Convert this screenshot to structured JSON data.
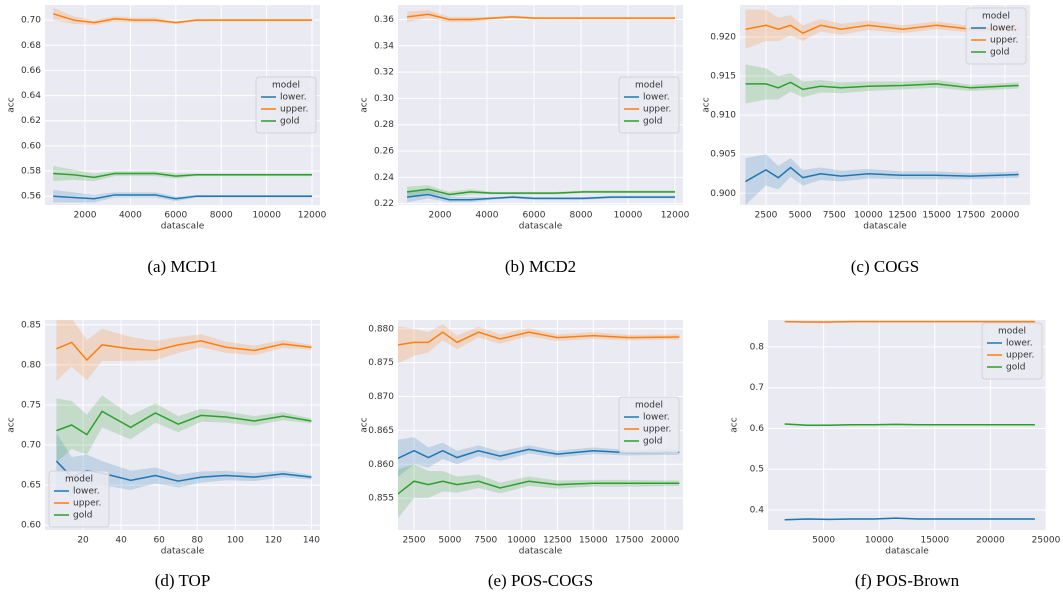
{
  "chart_data": [
    {
      "type": "line",
      "caption": "(a) MCD1",
      "xlabel": "datascale",
      "ylabel": "acc",
      "legend_title": "model",
      "legend": "center right",
      "grid": true,
      "x": [
        600,
        1500,
        2400,
        3300,
        4200,
        5100,
        6000,
        6900,
        8100,
        9300,
        10500,
        12000
      ],
      "xlim": [
        238,
        12350
      ],
      "xticks": [
        2000,
        4000,
        6000,
        8000,
        10000,
        12000
      ],
      "ylim": [
        0.553,
        0.712
      ],
      "yticks": [
        0.56,
        0.58,
        {
          "value": 0.6,
          "label": "0.60"
        },
        0.62,
        0.64,
        0.66,
        0.68,
        {
          "value": 0.7,
          "label": "0.70"
        }
      ],
      "series": [
        {
          "name": "lower.",
          "color": "#1f77b4",
          "values": [
            0.56,
            0.559,
            0.558,
            0.561,
            0.561,
            0.561,
            0.558,
            0.56,
            0.56,
            0.56,
            0.56,
            0.56
          ],
          "ci": [
            0.005,
            0.004,
            0.003,
            0.002,
            0.002,
            0.002,
            0.002,
            0.001,
            0.001,
            0.001,
            0.001,
            0.001
          ]
        },
        {
          "name": "upper.",
          "color": "#ff7f0e",
          "values": [
            0.705,
            0.7,
            0.698,
            0.701,
            0.7,
            0.7,
            0.698,
            0.7,
            0.7,
            0.7,
            0.7,
            0.7
          ],
          "ci": [
            0.005,
            0.003,
            0.002,
            0.002,
            0.002,
            0.002,
            0.001,
            0.001,
            0.001,
            0.001,
            0.001,
            0.001
          ]
        },
        {
          "name": "gold",
          "color": "#2ca02c",
          "values": [
            0.578,
            0.577,
            0.575,
            0.578,
            0.578,
            0.578,
            0.576,
            0.577,
            0.577,
            0.577,
            0.577,
            0.577
          ],
          "ci": [
            0.006,
            0.004,
            0.003,
            0.002,
            0.002,
            0.002,
            0.002,
            0.001,
            0.001,
            0.001,
            0.001,
            0.001
          ]
        }
      ]
    },
    {
      "type": "line",
      "caption": "(b) MCD2",
      "xlabel": "datascale",
      "ylabel": "acc",
      "legend_title": "model",
      "legend": "center right",
      "grid": true,
      "x": [
        600,
        1500,
        2400,
        3300,
        4200,
        5100,
        6000,
        6900,
        8100,
        9300,
        10500,
        12000
      ],
      "xlim": [
        213,
        12340
      ],
      "xticks": [
        2000,
        4000,
        6000,
        8000,
        10000,
        12000
      ],
      "ylim": [
        0.219,
        0.371
      ],
      "yticks": [
        0.22,
        0.24,
        0.26,
        0.28,
        {
          "value": 0.3,
          "label": "0.30"
        },
        0.32,
        0.34,
        0.36
      ],
      "series": [
        {
          "name": "lower.",
          "color": "#1f77b4",
          "values": [
            0.225,
            0.227,
            0.223,
            0.223,
            0.224,
            0.225,
            0.224,
            0.224,
            0.224,
            0.225,
            0.225,
            0.225
          ],
          "ci": [
            0.004,
            0.003,
            0.002,
            0.002,
            0.001,
            0.001,
            0.001,
            0.001,
            0.001,
            0.001,
            0.001,
            0.001
          ]
        },
        {
          "name": "upper.",
          "color": "#ff7f0e",
          "values": [
            0.362,
            0.364,
            0.36,
            0.36,
            0.361,
            0.362,
            0.361,
            0.361,
            0.361,
            0.361,
            0.361,
            0.361
          ],
          "ci": [
            0.004,
            0.003,
            0.002,
            0.002,
            0.001,
            0.001,
            0.001,
            0.001,
            0.001,
            0.001,
            0.001,
            0.001
          ]
        },
        {
          "name": "gold",
          "color": "#2ca02c",
          "values": [
            0.229,
            0.231,
            0.227,
            0.229,
            0.228,
            0.228,
            0.228,
            0.228,
            0.229,
            0.229,
            0.229,
            0.229
          ],
          "ci": [
            0.004,
            0.003,
            0.002,
            0.002,
            0.001,
            0.001,
            0.001,
            0.001,
            0.001,
            0.001,
            0.001,
            0.001
          ]
        }
      ]
    },
    {
      "type": "line",
      "caption": "(c) COGS",
      "xlabel": "datascale",
      "ylabel": "acc",
      "legend_title": "model",
      "legend": "upper right",
      "grid": true,
      "x": [
        1000,
        2500,
        3400,
        4300,
        5200,
        6500,
        8000,
        10000,
        12500,
        15000,
        17500,
        21000
      ],
      "xlim": [
        600,
        21830
      ],
      "xticks": [
        2500,
        5000,
        7500,
        10000,
        12500,
        15000,
        17500,
        20000
      ],
      "ylim": [
        0.8985,
        0.9241
      ],
      "yticks": [
        {
          "value": 0.9,
          "label": "0.900"
        },
        0.905,
        {
          "value": 0.91,
          "label": "0.910"
        },
        0.915,
        {
          "value": 0.92,
          "label": "0.920"
        }
      ],
      "series": [
        {
          "name": "lower.",
          "color": "#1f77b4",
          "values": [
            0.9015,
            0.903,
            0.902,
            0.9033,
            0.902,
            0.9025,
            0.9022,
            0.9025,
            0.9023,
            0.9023,
            0.9022,
            0.9024
          ],
          "ci": [
            0.003,
            0.002,
            0.0015,
            0.0012,
            0.001,
            0.0008,
            0.0007,
            0.0006,
            0.0005,
            0.0005,
            0.0004,
            0.0004
          ]
        },
        {
          "name": "upper.",
          "color": "#ff7f0e",
          "values": [
            0.921,
            0.9215,
            0.921,
            0.9215,
            0.9205,
            0.9215,
            0.921,
            0.9215,
            0.921,
            0.9215,
            0.921,
            0.921
          ],
          "ci": [
            0.0025,
            0.002,
            0.0015,
            0.0013,
            0.001,
            0.0008,
            0.0007,
            0.0006,
            0.0005,
            0.0005,
            0.0004,
            0.0004
          ]
        },
        {
          "name": "gold",
          "color": "#2ca02c",
          "values": [
            0.914,
            0.914,
            0.9135,
            0.9142,
            0.9133,
            0.9137,
            0.9135,
            0.9137,
            0.9138,
            0.914,
            0.9135,
            0.9138
          ],
          "ci": [
            0.0025,
            0.002,
            0.0015,
            0.0012,
            0.001,
            0.0008,
            0.0007,
            0.0006,
            0.0005,
            0.0005,
            0.0004,
            0.0004
          ]
        }
      ]
    },
    {
      "type": "line",
      "caption": "(d) TOP",
      "xlabel": "datascale",
      "ylabel": "acc",
      "legend_title": "model",
      "legend": "lower left",
      "grid": true,
      "x": [
        6,
        14,
        22,
        30,
        45,
        58,
        70,
        82,
        95,
        110,
        125,
        140
      ],
      "xlim": [
        0,
        144.5
      ],
      "xticks": [
        20,
        40,
        60,
        80,
        100,
        120,
        140
      ],
      "ylim": [
        0.594,
        0.856
      ],
      "yticks": [
        {
          "value": 0.6,
          "label": "0.60"
        },
        0.65,
        {
          "value": 0.7,
          "label": "0.70"
        },
        0.75,
        {
          "value": 0.8,
          "label": "0.80"
        },
        0.85
      ],
      "series": [
        {
          "name": "lower.",
          "color": "#1f77b4",
          "values": [
            0.68,
            0.66,
            0.668,
            0.665,
            0.656,
            0.662,
            0.655,
            0.66,
            0.662,
            0.66,
            0.664,
            0.66
          ],
          "ci": [
            0.035,
            0.025,
            0.02,
            0.015,
            0.012,
            0.01,
            0.008,
            0.007,
            0.006,
            0.005,
            0.004,
            0.003
          ]
        },
        {
          "name": "upper.",
          "color": "#ff7f0e",
          "values": [
            0.82,
            0.828,
            0.806,
            0.825,
            0.82,
            0.818,
            0.825,
            0.83,
            0.822,
            0.818,
            0.826,
            0.822
          ],
          "ci": [
            0.04,
            0.03,
            0.025,
            0.02,
            0.015,
            0.012,
            0.01,
            0.008,
            0.007,
            0.006,
            0.005,
            0.003
          ]
        },
        {
          "name": "gold",
          "color": "#2ca02c",
          "values": [
            0.718,
            0.725,
            0.713,
            0.742,
            0.722,
            0.74,
            0.726,
            0.737,
            0.735,
            0.73,
            0.736,
            0.73
          ],
          "ci": [
            0.04,
            0.03,
            0.025,
            0.02,
            0.015,
            0.012,
            0.01,
            0.008,
            0.007,
            0.006,
            0.005,
            0.003
          ]
        }
      ]
    },
    {
      "type": "line",
      "caption": "(e) POS-COGS",
      "xlabel": "datascale",
      "ylabel": "acc",
      "legend_title": "model",
      "legend": "center right",
      "grid": true,
      "x": [
        1000,
        2500,
        3500,
        4500,
        5500,
        7000,
        8500,
        10500,
        12500,
        15000,
        17500,
        21000
      ],
      "xlim": [
        1384,
        21255
      ],
      "xticks": [
        2500,
        5000,
        7500,
        10000,
        12500,
        15000,
        17500,
        20000
      ],
      "ylim": [
        0.8503,
        0.8813
      ],
      "yticks": [
        0.855,
        {
          "value": 0.86,
          "label": "0.860"
        },
        0.865,
        {
          "value": 0.87,
          "label": "0.870"
        },
        0.875,
        {
          "value": 0.88,
          "label": "0.880"
        }
      ],
      "series": [
        {
          "name": "lower.",
          "color": "#1f77b4",
          "values": [
            0.8605,
            0.862,
            0.861,
            0.862,
            0.861,
            0.862,
            0.8612,
            0.8622,
            0.8615,
            0.862,
            0.8617,
            0.8618
          ],
          "ci": [
            0.003,
            0.002,
            0.0015,
            0.0012,
            0.001,
            0.0008,
            0.0007,
            0.0006,
            0.0005,
            0.0005,
            0.0004,
            0.0004
          ]
        },
        {
          "name": "upper.",
          "color": "#ff7f0e",
          "values": [
            0.8775,
            0.878,
            0.878,
            0.8795,
            0.878,
            0.8795,
            0.8785,
            0.8795,
            0.8787,
            0.879,
            0.8787,
            0.8788
          ],
          "ci": [
            0.003,
            0.002,
            0.0015,
            0.0012,
            0.001,
            0.0008,
            0.0007,
            0.0006,
            0.0005,
            0.0005,
            0.0004,
            0.0004
          ]
        },
        {
          "name": "gold",
          "color": "#2ca02c",
          "values": [
            0.855,
            0.8575,
            0.857,
            0.8575,
            0.857,
            0.8575,
            0.8565,
            0.8575,
            0.857,
            0.8572,
            0.8572,
            0.8572
          ],
          "ci": [
            0.004,
            0.0025,
            0.002,
            0.0015,
            0.0012,
            0.001,
            0.0008,
            0.0007,
            0.0006,
            0.0005,
            0.0005,
            0.0004
          ]
        }
      ]
    },
    {
      "type": "line",
      "caption": "(f) POS-Brown",
      "xlabel": "datascale",
      "ylabel": "acc",
      "legend_title": "model",
      "legend": "upper right",
      "grid": true,
      "x": [
        1500,
        3500,
        5500,
        7500,
        9500,
        11500,
        13500,
        15500,
        17500,
        19500,
        21500,
        24000
      ],
      "xlim": [
        0,
        25000
      ],
      "xticks": [
        5000,
        10000,
        15000,
        20000,
        25000
      ],
      "ylim": [
        0.351,
        0.866
      ],
      "yticks": [
        0.4,
        0.5,
        0.6,
        0.7,
        0.8
      ],
      "series": [
        {
          "name": "lower.",
          "color": "#1f77b4",
          "values": [
            0.376,
            0.378,
            0.377,
            0.378,
            0.378,
            0.38,
            0.378,
            0.378,
            0.378,
            0.378,
            0.378,
            0.378
          ],
          "ci": [
            0.002,
            0.002,
            0.002,
            0.002,
            0.002,
            0.002,
            0.002,
            0.002,
            0.002,
            0.002,
            0.002,
            0.002
          ]
        },
        {
          "name": "upper.",
          "color": "#ff7f0e",
          "values": [
            0.862,
            0.861,
            0.861,
            0.862,
            0.862,
            0.862,
            0.862,
            0.862,
            0.862,
            0.862,
            0.862,
            0.862
          ],
          "ci": [
            0.002,
            0.002,
            0.002,
            0.002,
            0.002,
            0.002,
            0.002,
            0.002,
            0.002,
            0.002,
            0.002,
            0.002
          ]
        },
        {
          "name": "gold",
          "color": "#2ca02c",
          "values": [
            0.611,
            0.608,
            0.608,
            0.609,
            0.609,
            0.61,
            0.609,
            0.609,
            0.609,
            0.609,
            0.609,
            0.609
          ],
          "ci": [
            0.002,
            0.002,
            0.002,
            0.002,
            0.002,
            0.002,
            0.002,
            0.002,
            0.002,
            0.002,
            0.002,
            0.002
          ]
        }
      ]
    }
  ]
}
